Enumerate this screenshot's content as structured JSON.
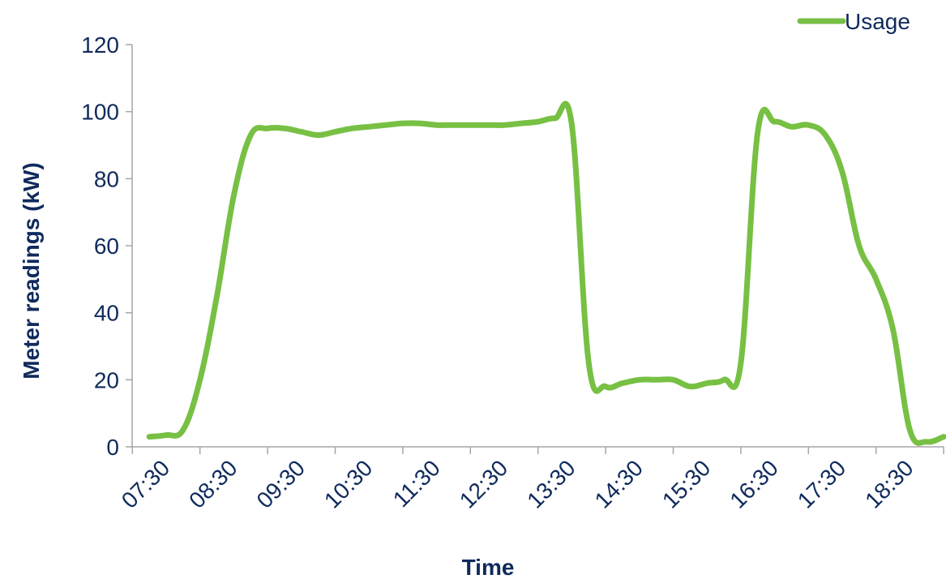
{
  "chart_data": {
    "type": "line",
    "title": "",
    "xlabel": "Time",
    "ylabel": "Meter readings (kW)",
    "ylim": [
      0,
      120
    ],
    "yticks": [
      0,
      20,
      40,
      60,
      80,
      100,
      120
    ],
    "xtick_labels": [
      "07:30",
      "08:30",
      "09:30",
      "10:30",
      "11:30",
      "12:30",
      "13:30",
      "14:30",
      "15:30",
      "16:30",
      "17:30",
      "18:30"
    ],
    "grid": false,
    "legend": "top-right",
    "series": [
      {
        "name": "Usage",
        "color": "#77c043",
        "x": [
          "07:15",
          "07:30",
          "07:45",
          "08:00",
          "08:15",
          "08:30",
          "08:45",
          "09:00",
          "09:15",
          "09:30",
          "09:45",
          "10:00",
          "10:15",
          "10:30",
          "10:45",
          "11:00",
          "11:15",
          "11:30",
          "11:45",
          "12:00",
          "12:15",
          "12:30",
          "12:45",
          "13:00",
          "13:15",
          "13:30",
          "13:45",
          "14:00",
          "14:15",
          "14:30",
          "14:45",
          "15:00",
          "15:15",
          "15:30",
          "15:45",
          "16:00",
          "16:15",
          "16:30",
          "16:45",
          "17:00",
          "17:15",
          "17:30",
          "17:45",
          "18:00",
          "18:15",
          "18:30",
          "18:45",
          "19:00"
        ],
        "values": [
          3,
          3.5,
          5,
          20,
          45,
          75,
          93,
          95,
          95,
          94,
          93,
          94,
          95,
          95.5,
          96,
          96.5,
          96.5,
          96,
          96,
          96,
          96,
          96,
          96.5,
          97,
          98,
          96,
          25,
          18,
          19,
          20,
          20,
          20,
          18,
          19,
          20,
          25,
          94,
          97,
          95.5,
          96,
          93,
          82,
          60,
          50,
          35,
          5,
          1.5,
          3
        ]
      }
    ]
  }
}
